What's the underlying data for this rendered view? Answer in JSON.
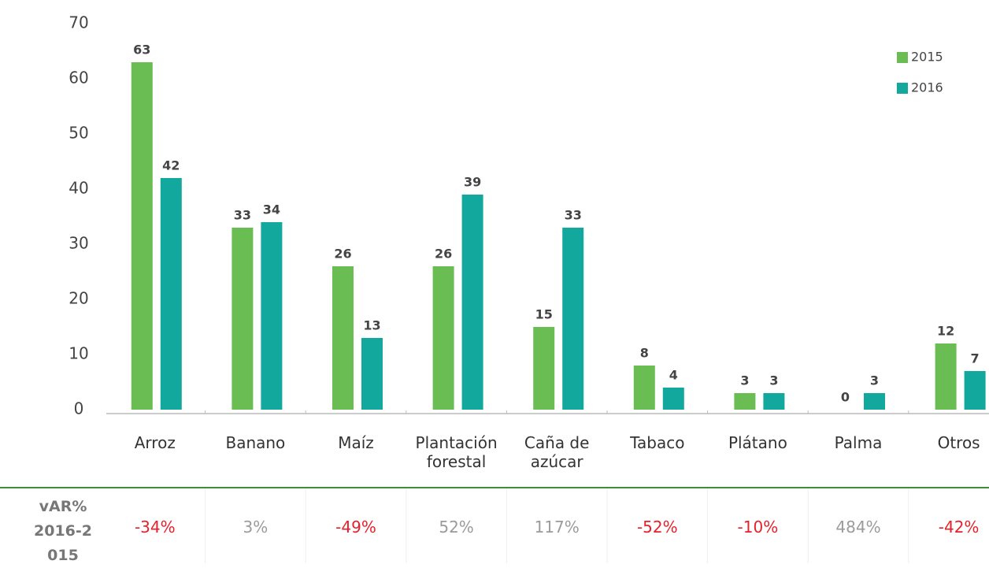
{
  "chart_data": {
    "type": "bar",
    "categories": [
      "Arroz",
      "Banano",
      "Maíz",
      "Plantación forestal",
      "Caña de azúcar",
      "Tabaco",
      "Plátano",
      "Palma",
      "Otros"
    ],
    "series": [
      {
        "name": "2015",
        "color": "#6abd53",
        "values": [
          63,
          33,
          26,
          26,
          15,
          8,
          3,
          0,
          12
        ]
      },
      {
        "name": "2016",
        "color": "#13a89e",
        "values": [
          42,
          34,
          13,
          39,
          33,
          4,
          3,
          3,
          7
        ]
      }
    ],
    "ylim": [
      0,
      70
    ],
    "yticks": [
      0,
      10,
      20,
      30,
      40,
      50,
      60,
      70
    ],
    "grid": false,
    "legend": "top-right",
    "variation": {
      "label": "vAR% 2016-2015",
      "values": [
        -34,
        3,
        -49,
        52,
        117,
        -52,
        -10,
        484,
        -42
      ],
      "value_labels": [
        "-34%",
        "3%",
        "-49%",
        "52%",
        "117%",
        "-52%",
        "-10%",
        "484%",
        "-42%"
      ],
      "colors": {
        "negative": "#e8202a",
        "positive": "#9b9b9b"
      }
    }
  }
}
